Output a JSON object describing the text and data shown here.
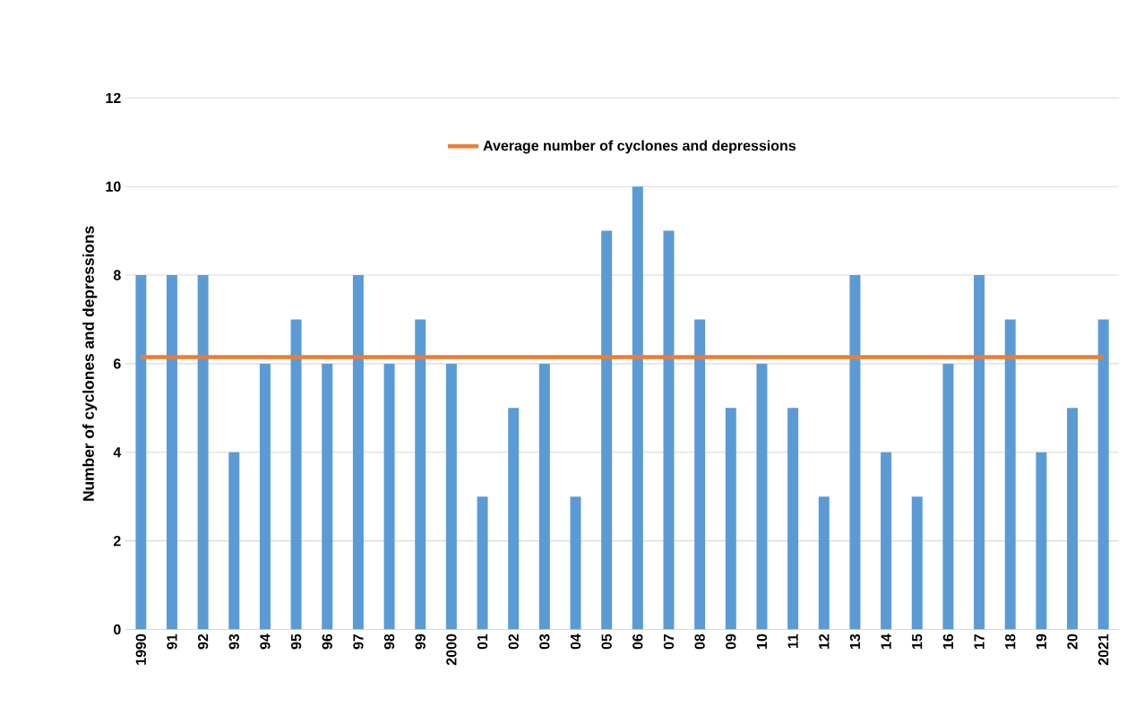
{
  "chart_data": {
    "type": "bar",
    "ylabel": "Number of cyclones and depressions",
    "categories": [
      "1990",
      "91",
      "92",
      "93",
      "94",
      "95",
      "96",
      "97",
      "98",
      "99",
      "2000",
      "01",
      "02",
      "03",
      "04",
      "05",
      "06",
      "07",
      "08",
      "09",
      "10",
      "11",
      "12",
      "13",
      "14",
      "15",
      "16",
      "17",
      "18",
      "19",
      "20",
      "2021"
    ],
    "series": [
      {
        "color": "#5b9bd5",
        "values": [
          8,
          8,
          8,
          4,
          6,
          7,
          6,
          8,
          6,
          7,
          6,
          3,
          5,
          6,
          3,
          9,
          10,
          9,
          7,
          5,
          6,
          5,
          3,
          8,
          4,
          3,
          6,
          8,
          7,
          4,
          5,
          7
        ]
      },
      {
        "type": "line",
        "name": "Average number of cyclones and depressions",
        "color": "#ed7d31",
        "marker": "none",
        "values": [
          6.15,
          6.15,
          6.15,
          6.15,
          6.15,
          6.15,
          6.15,
          6.15,
          6.15,
          6.15,
          6.15,
          6.15,
          6.15,
          6.15,
          6.15,
          6.15,
          6.15,
          6.15,
          6.15,
          6.15,
          6.15,
          6.15,
          6.15,
          6.15,
          6.15,
          6.15,
          6.15,
          6.15,
          6.15,
          6.15,
          6.15,
          6.15
        ]
      }
    ],
    "ylim": [
      0,
      12
    ],
    "yticks": [
      0,
      2,
      4,
      6,
      8,
      10,
      12
    ],
    "grid": "y",
    "legend": "top"
  }
}
